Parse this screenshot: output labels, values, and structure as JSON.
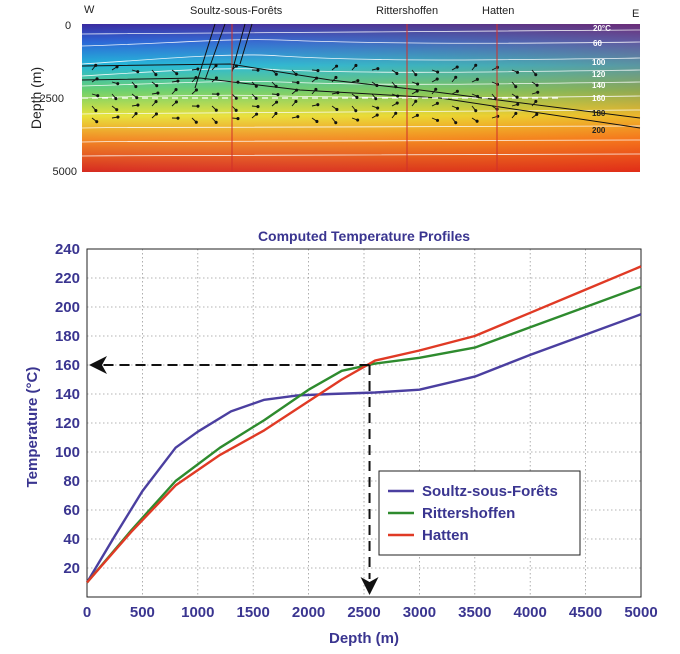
{
  "section": {
    "left_end": "W",
    "right_end": "E",
    "wells": [
      "Soultz-sous-Forêts",
      "Rittershoffen",
      "Hatten"
    ],
    "ylabel": "Depth (m)",
    "depth_ticks": [
      "0",
      "2500",
      "5000"
    ],
    "isotherm_labels": [
      "20°C",
      "60",
      "100",
      "120",
      "140",
      "160",
      "180",
      "200"
    ]
  },
  "chart_data": {
    "type": "line",
    "title": "Computed Temperature Profiles",
    "xlabel": "Depth (m)",
    "ylabel": "Temperature (°C)",
    "xlim": [
      0,
      5000
    ],
    "ylim": [
      0,
      240
    ],
    "xticks": [
      0,
      500,
      1000,
      1500,
      2000,
      2500,
      3000,
      3500,
      4000,
      4500,
      5000
    ],
    "yticks": [
      20,
      40,
      60,
      80,
      100,
      120,
      140,
      160,
      180,
      200,
      220,
      240
    ],
    "grid": true,
    "legend_position": "bottom-right",
    "series": [
      {
        "name": "Soultz-sous-Forêts",
        "color": "#4b3fa0",
        "x": [
          0,
          250,
          500,
          800,
          1000,
          1300,
          1600,
          1900,
          2200,
          2600,
          3000,
          3500,
          4000,
          4500,
          5000
        ],
        "y": [
          10,
          42,
          73,
          103,
          114,
          128,
          136,
          139,
          140,
          141,
          143,
          152,
          167,
          181,
          195
        ]
      },
      {
        "name": "Rittershoffen",
        "color": "#2e8b2e",
        "x": [
          0,
          400,
          800,
          1200,
          1600,
          2000,
          2300,
          2600,
          3000,
          3500,
          4000,
          4500,
          5000
        ],
        "y": [
          10,
          46,
          80,
          103,
          122,
          143,
          156,
          161,
          165,
          172,
          186,
          200,
          214
        ]
      },
      {
        "name": "Hatten",
        "color": "#e03a25",
        "x": [
          0,
          400,
          800,
          1200,
          1600,
          2000,
          2300,
          2600,
          3000,
          3500,
          4000,
          4500,
          5000
        ],
        "y": [
          10,
          45,
          77,
          98,
          115,
          135,
          150,
          163,
          170,
          180,
          196,
          212,
          228
        ]
      }
    ],
    "annotation": {
      "depth": 2550,
      "temperature": 160
    }
  }
}
